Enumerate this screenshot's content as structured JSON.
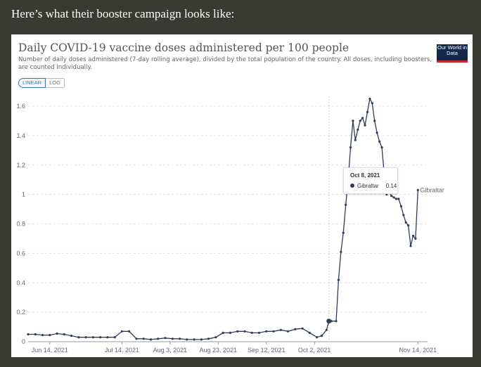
{
  "intro": "Here’s what their booster campaign looks like:",
  "title": "Daily COVID-19 vaccine doses administered per 100 people",
  "subtitle": "Number of daily doses administered (7-day rolling average), divided by the total population of the country. All doses, including boosters, are counted individually.",
  "logo": "Our World in Data",
  "toggle": {
    "linear": "LINEAR",
    "log": "LOG"
  },
  "tooltip": {
    "date": "Oct 8, 2021",
    "series": "Gibraltar",
    "value": "0.14"
  },
  "colors": {
    "series": "#2f3d56",
    "accent": "#3a76b8",
    "logo_bg": "#13284b",
    "logo_bar": "#c82830"
  },
  "chart_data": {
    "type": "line",
    "title": "Daily COVID-19 vaccine doses administered per 100 people",
    "xlabel": "",
    "ylabel": "",
    "ylim": [
      0,
      1.6
    ],
    "yticks": [
      0,
      0.2,
      0.4,
      0.6,
      0.8,
      1,
      1.2,
      1.4,
      1.6
    ],
    "ytick_labels": [
      "0",
      "0.2",
      "0.4",
      "0.6",
      "0.8",
      "1",
      "1.2",
      "1.4",
      "1.6"
    ],
    "xlim": [
      "2021-06-05",
      "2021-11-18"
    ],
    "xticks": [
      "2021-06-14",
      "2021-07-14",
      "2021-08-03",
      "2021-08-23",
      "2021-09-12",
      "2021-10-02",
      "2021-11-14"
    ],
    "xtick_labels": [
      "Jun 14, 2021",
      "Jul 14, 2021",
      "Aug 3, 2021",
      "Aug 23, 2021",
      "Sep 12, 2021",
      "Oct 2, 2021",
      "Nov 14, 2021"
    ],
    "grid": true,
    "series": [
      {
        "name": "Gibraltar",
        "x": [
          "2021-06-05",
          "2021-06-08",
          "2021-06-11",
          "2021-06-14",
          "2021-06-17",
          "2021-06-20",
          "2021-06-23",
          "2021-06-26",
          "2021-06-29",
          "2021-07-02",
          "2021-07-05",
          "2021-07-08",
          "2021-07-11",
          "2021-07-14",
          "2021-07-17",
          "2021-07-20",
          "2021-07-23",
          "2021-07-26",
          "2021-07-29",
          "2021-08-01",
          "2021-08-04",
          "2021-08-07",
          "2021-08-10",
          "2021-08-13",
          "2021-08-16",
          "2021-08-19",
          "2021-08-22",
          "2021-08-25",
          "2021-08-28",
          "2021-08-31",
          "2021-09-03",
          "2021-09-06",
          "2021-09-09",
          "2021-09-12",
          "2021-09-15",
          "2021-09-18",
          "2021-09-21",
          "2021-09-24",
          "2021-09-27",
          "2021-09-30",
          "2021-10-03",
          "2021-10-05",
          "2021-10-07",
          "2021-10-08",
          "2021-10-09",
          "2021-10-11",
          "2021-10-12",
          "2021-10-13",
          "2021-10-14",
          "2021-10-15",
          "2021-10-16",
          "2021-10-17",
          "2021-10-18",
          "2021-10-19",
          "2021-10-20",
          "2021-10-21",
          "2021-10-22",
          "2021-10-23",
          "2021-10-24",
          "2021-10-25",
          "2021-10-26",
          "2021-10-27",
          "2021-10-28",
          "2021-10-29",
          "2021-10-30",
          "2021-10-31",
          "2021-11-01",
          "2021-11-02",
          "2021-11-03",
          "2021-11-04",
          "2021-11-05",
          "2021-11-06",
          "2021-11-07",
          "2021-11-08",
          "2021-11-09",
          "2021-11-10",
          "2021-11-11",
          "2021-11-12",
          "2021-11-13",
          "2021-11-14"
        ],
        "values": [
          0.05,
          0.05,
          0.045,
          0.045,
          0.055,
          0.05,
          0.04,
          0.03,
          0.03,
          0.03,
          0.03,
          0.03,
          0.03,
          0.07,
          0.07,
          0.02,
          0.02,
          0.015,
          0.02,
          0.025,
          0.02,
          0.02,
          0.015,
          0.015,
          0.015,
          0.02,
          0.03,
          0.06,
          0.06,
          0.07,
          0.07,
          0.06,
          0.06,
          0.07,
          0.07,
          0.08,
          0.07,
          0.085,
          0.09,
          0.06,
          0.03,
          0.04,
          0.08,
          0.14,
          0.14,
          0.14,
          0.42,
          0.61,
          0.74,
          0.93,
          1.1,
          1.32,
          1.5,
          1.37,
          1.44,
          1.5,
          1.52,
          1.47,
          1.56,
          1.65,
          1.62,
          1.5,
          1.42,
          1.36,
          1.32,
          1.14,
          1.0,
          1.02,
          0.99,
          0.98,
          0.97,
          0.97,
          0.92,
          0.86,
          0.81,
          0.79,
          0.65,
          0.72,
          0.7,
          1.03
        ]
      }
    ],
    "annotations": [
      {
        "text": "Gibraltar",
        "x": "2021-11-14",
        "y": 1.03
      }
    ]
  }
}
